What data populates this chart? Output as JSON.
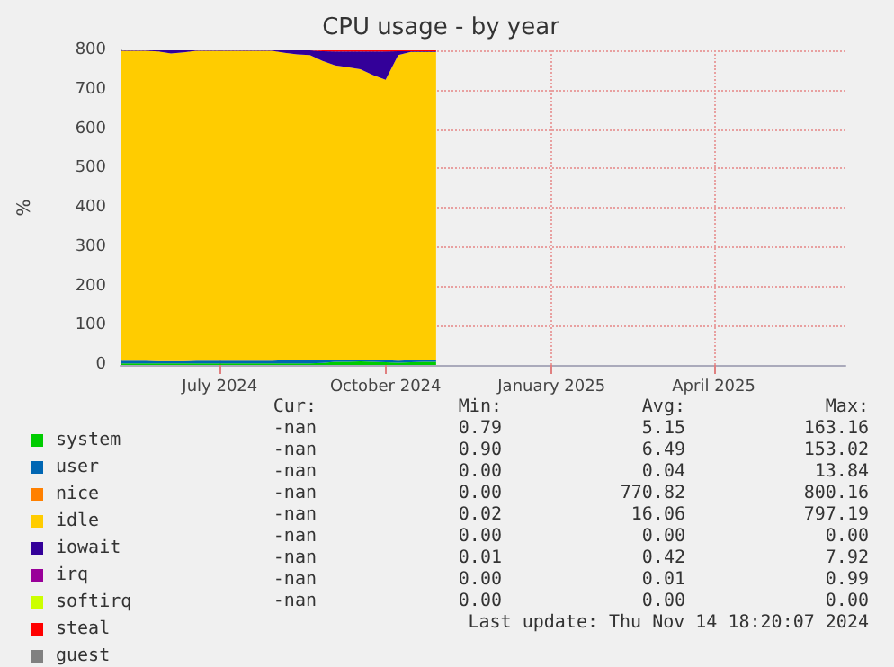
{
  "chart_data": {
    "type": "area",
    "title": "CPU usage - by year",
    "ylabel": "%",
    "stacked": true,
    "grid": true,
    "legend": "bottom left",
    "x": [
      "2024-05-07",
      "2024-05-14",
      "2024-05-21",
      "2024-05-28",
      "2024-06-04",
      "2024-06-11",
      "2024-06-18",
      "2024-06-25",
      "2024-07-02",
      "2024-07-09",
      "2024-07-16",
      "2024-07-23",
      "2024-07-30",
      "2024-08-06",
      "2024-08-13",
      "2024-08-20",
      "2024-08-27",
      "2024-09-03",
      "2024-09-10",
      "2024-09-17",
      "2024-09-24",
      "2024-10-01",
      "2024-10-08",
      "2024-10-15",
      "2024-10-22",
      "2024-10-29"
    ],
    "xlim": [
      "2024-05-07",
      "2025-06-13"
    ],
    "xticks": [
      {
        "value": "2024-07-01",
        "label": "July 2024"
      },
      {
        "value": "2024-10-01",
        "label": "October 2024"
      },
      {
        "value": "2025-01-01",
        "label": "January 2025"
      },
      {
        "value": "2025-04-01",
        "label": "April 2025"
      }
    ],
    "ylim": [
      0,
      800
    ],
    "yticks": [
      0,
      100,
      200,
      300,
      400,
      500,
      600,
      700,
      800
    ],
    "series": [
      {
        "name": "system",
        "color": "#00cc00",
        "values": [
          4,
          4,
          4,
          4,
          4,
          4,
          4,
          4,
          4,
          4,
          4,
          4,
          4,
          4,
          4,
          4,
          5,
          8,
          8,
          9,
          8,
          7,
          6,
          7,
          8,
          8
        ]
      },
      {
        "name": "user",
        "color": "#0066b3",
        "values": [
          7,
          7,
          7,
          6,
          6,
          6,
          7,
          7,
          7,
          7,
          7,
          7,
          7,
          8,
          8,
          8,
          7,
          5,
          5,
          5,
          5,
          5,
          5,
          5,
          6,
          6
        ]
      },
      {
        "name": "nice",
        "color": "#ff8000",
        "values": [
          null,
          null,
          null,
          null,
          null,
          null,
          null,
          null,
          null,
          null,
          null,
          null,
          null,
          null,
          null,
          null,
          null,
          null,
          null,
          null,
          null,
          null,
          null,
          null,
          null,
          null
        ]
      },
      {
        "name": "idle",
        "color": "#ffcc00",
        "values": [
          788,
          788,
          788,
          787,
          782,
          785,
          788,
          788,
          788,
          788,
          788,
          788,
          788,
          782,
          778,
          776,
          761,
          749,
          744,
          738,
          724,
          713,
          777,
          784,
          782,
          782
        ]
      },
      {
        "name": "iowait",
        "color": "#330099",
        "values": [
          1,
          1,
          1,
          3,
          8,
          5,
          1,
          1,
          1,
          1,
          1,
          1,
          1,
          6,
          10,
          12,
          25,
          35,
          40,
          45,
          60,
          72,
          10,
          2,
          2,
          2
        ]
      },
      {
        "name": "irq",
        "color": "#990099",
        "values": [
          null,
          null,
          null,
          null,
          null,
          null,
          null,
          null,
          null,
          null,
          null,
          null,
          null,
          null,
          null,
          null,
          null,
          null,
          null,
          null,
          null,
          null,
          null,
          null,
          null,
          null
        ]
      },
      {
        "name": "softirq",
        "color": "#ccff00",
        "values": [
          null,
          null,
          null,
          null,
          null,
          null,
          null,
          null,
          null,
          null,
          null,
          null,
          null,
          null,
          null,
          null,
          null,
          null,
          null,
          null,
          null,
          null,
          null,
          null,
          null,
          null
        ]
      },
      {
        "name": "steal",
        "color": "#ff0000",
        "values": [
          0,
          0,
          0,
          0,
          0,
          0,
          0,
          0,
          0,
          0,
          0,
          0,
          0,
          0,
          0,
          0,
          2,
          3,
          3,
          3,
          3,
          3,
          2,
          2,
          2,
          2
        ]
      },
      {
        "name": "guest",
        "color": "#808080",
        "values": [
          null,
          null,
          null,
          null,
          null,
          null,
          null,
          null,
          null,
          null,
          null,
          null,
          null,
          null,
          null,
          null,
          null,
          null,
          null,
          null,
          null,
          null,
          null,
          null,
          null,
          null
        ]
      }
    ],
    "annotations": [
      "Cur:",
      "Min:",
      "Avg:",
      "Max:",
      "-nan",
      "0.79",
      "5.15",
      "163.16",
      "-nan",
      "0.90",
      "6.49",
      "153.02",
      "-nan",
      "0.00",
      "0.04",
      "13.84",
      "-nan",
      "0.00",
      "770.82",
      "800.16",
      "-nan",
      "0.02",
      "16.06",
      "797.19",
      "-nan",
      "0.00",
      "0.00",
      "0.00",
      "-nan",
      "0.01",
      "0.42",
      "7.92",
      "-nan",
      "0.00",
      "0.01",
      "0.99",
      "-nan",
      "0.00",
      "0.00",
      "0.00",
      "Last update: Thu Nov 14 18:20:07 2024"
    ]
  }
}
